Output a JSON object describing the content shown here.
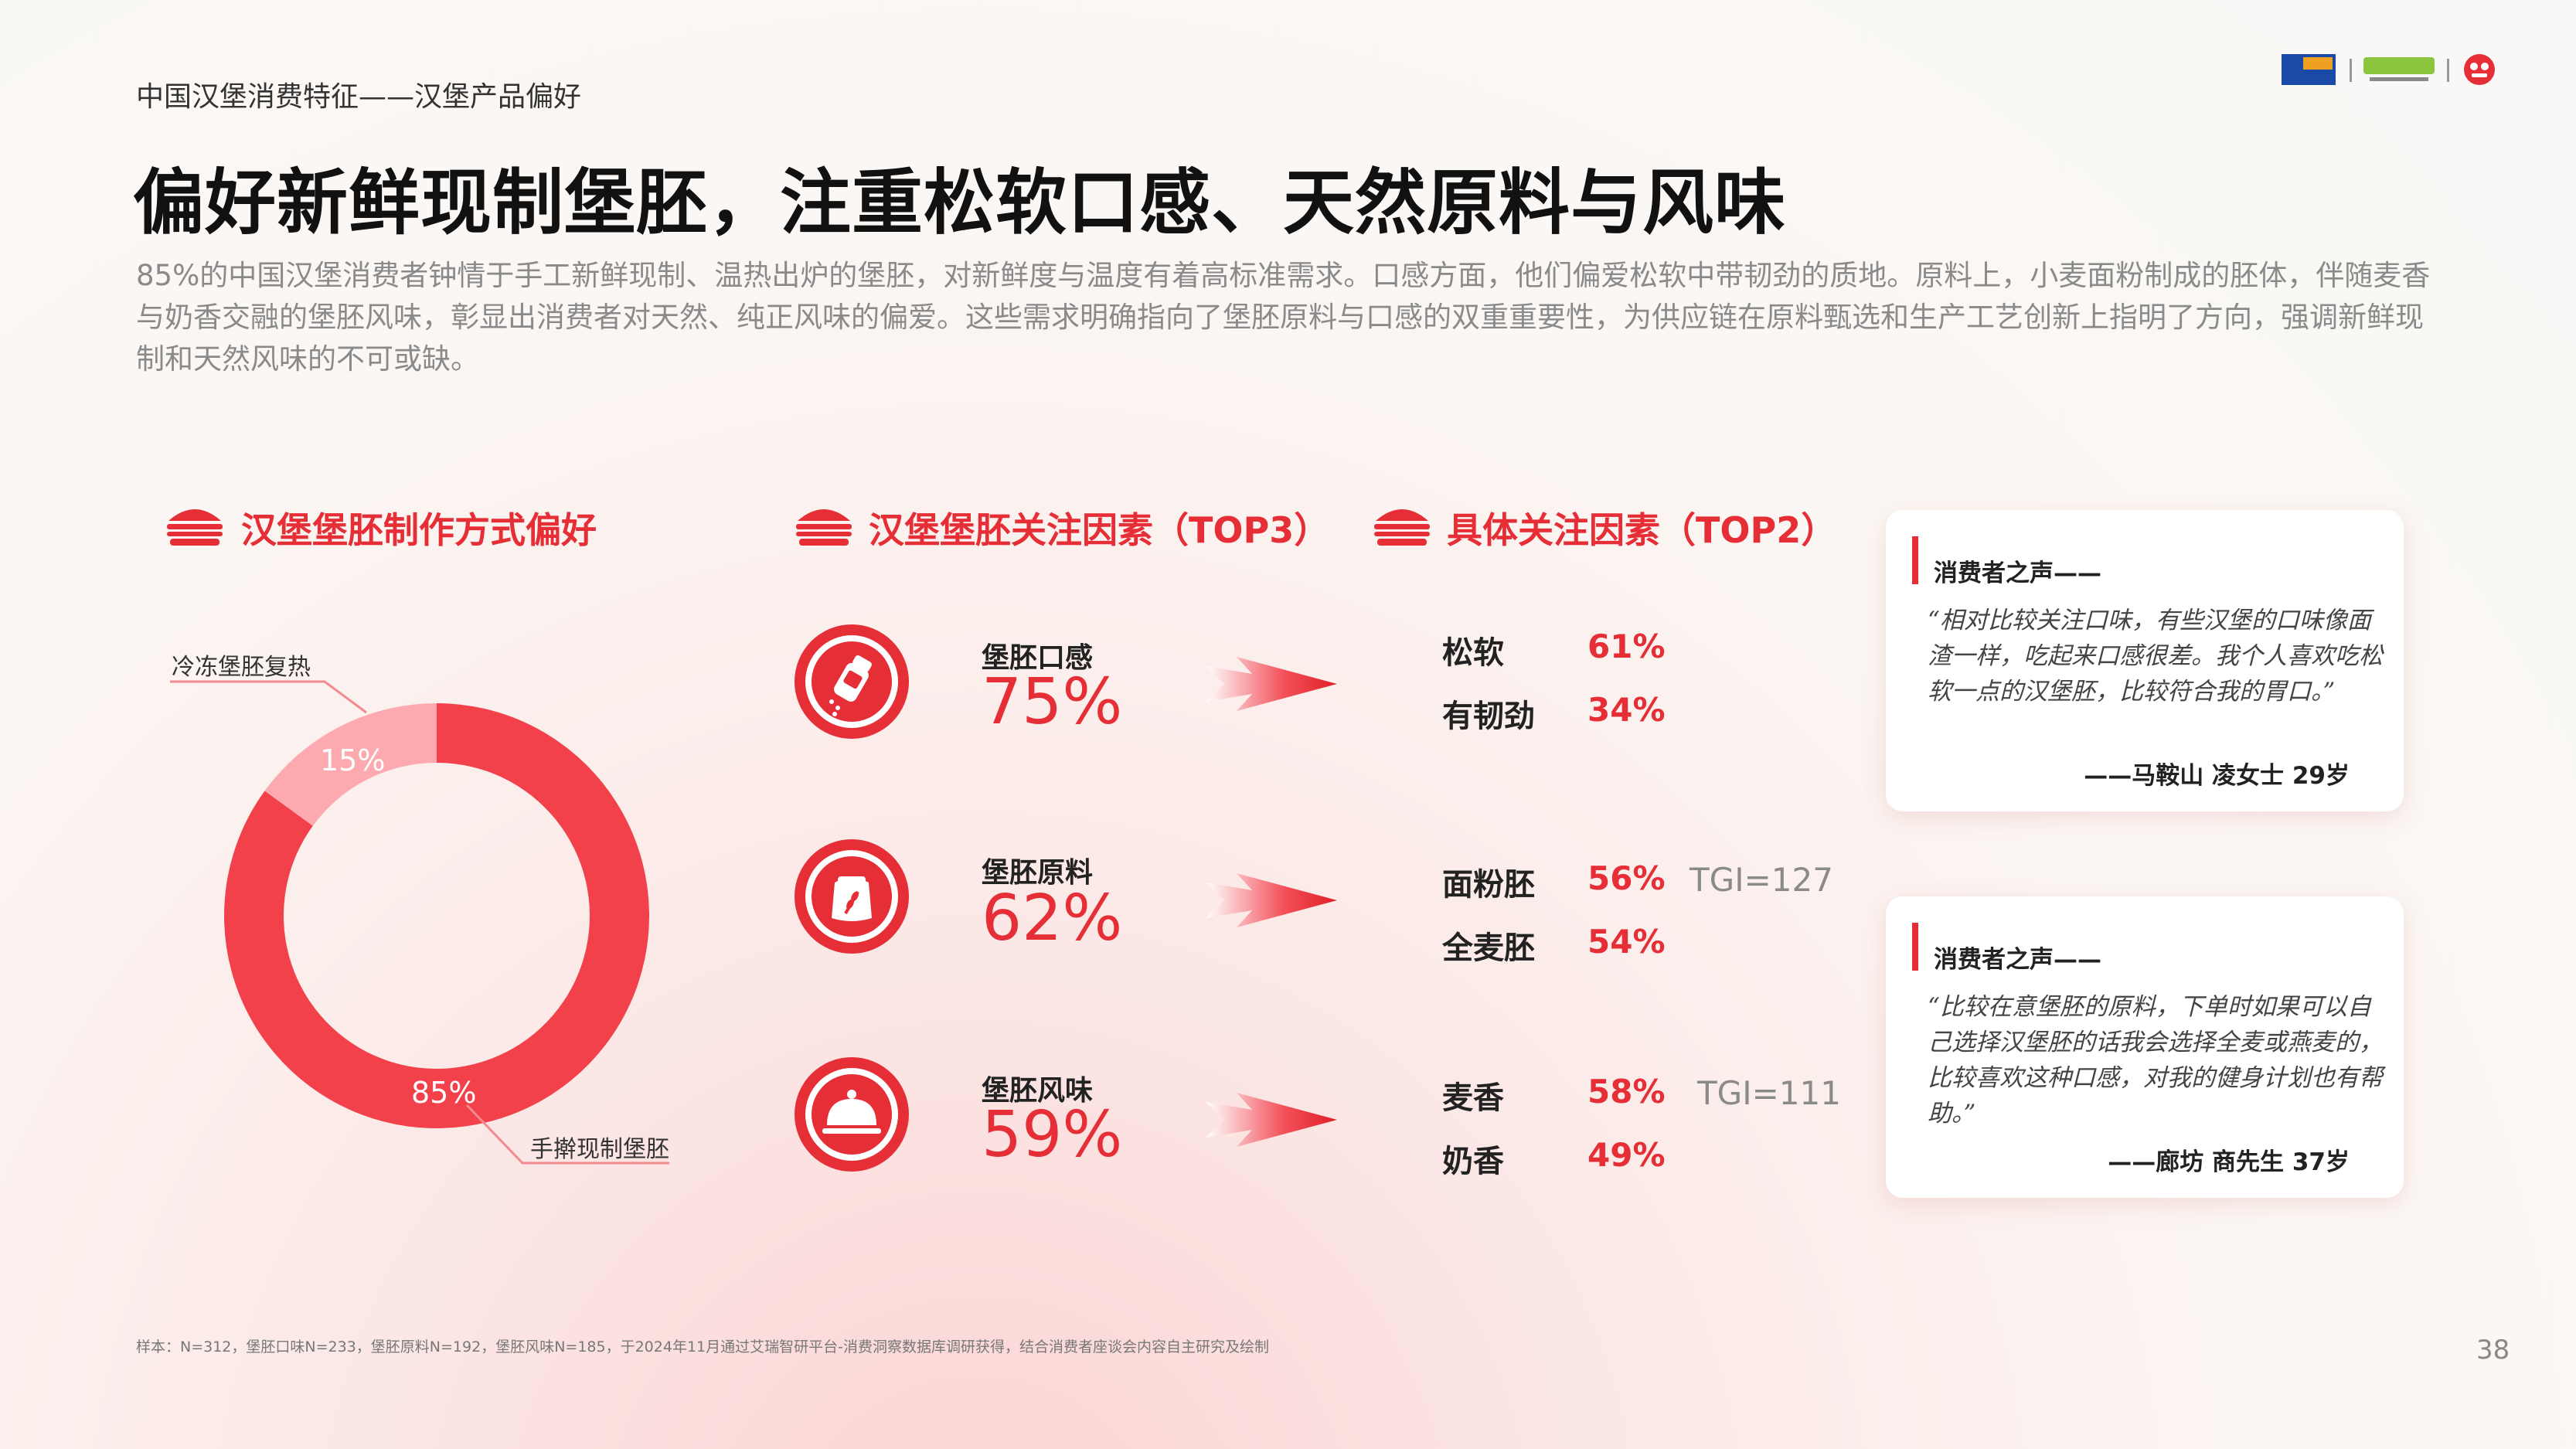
{
  "header": {
    "section": "中国汉堡消费特征——汉堡产品偏好",
    "title": "偏好新鲜现制堡胚，注重松软口感、天然原料与风味",
    "intro": "85%的中国汉堡消费者钟情于手工新鲜现制、温热出炉的堡胚，对新鲜度与温度有着高标准需求。口感方面，他们偏爱松软中带韧劲的质地。原料上，小麦面粉制成的胚体，伴随麦香与奶香交融的堡胚风味，彰显出消费者对天然、纯正风味的偏爱。这些需求明确指向了堡胚原料与口感的双重重要性，为供应链在原料甄选和生产工艺创新上指明了方向，强调新鲜现制和天然风味的不可或缺。"
  },
  "sections": {
    "method": "汉堡堡胚制作方式偏好",
    "factors": "汉堡堡胚关注因素（TOP3）",
    "details": "具体关注因素（TOP2）"
  },
  "chart_data": {
    "type": "pie",
    "donut": true,
    "title": "汉堡堡胚制作方式偏好",
    "categories": [
      "手擀现制堡胚",
      "冷冻堡胚复热"
    ],
    "values": [
      85,
      15
    ],
    "value_labels": [
      "85%",
      "15%"
    ],
    "colors": [
      "#f2414b",
      "#fcaab0"
    ],
    "legend_placement": "callout"
  },
  "factors": [
    {
      "name": "堡胚口感",
      "pct": "75%",
      "icon": "salt-shaker-icon",
      "items": [
        {
          "name": "松软",
          "pct": "61%",
          "tgi": ""
        },
        {
          "name": "有韧劲",
          "pct": "34%",
          "tgi": ""
        }
      ]
    },
    {
      "name": "堡胚原料",
      "pct": "62%",
      "icon": "flour-sack-icon",
      "items": [
        {
          "name": "面粉胚",
          "pct": "56%",
          "tgi": "TGI=127"
        },
        {
          "name": "全麦胚",
          "pct": "54%",
          "tgi": ""
        }
      ]
    },
    {
      "name": "堡胚风味",
      "pct": "59%",
      "icon": "cloche-icon",
      "items": [
        {
          "name": "麦香",
          "pct": "58%",
          "tgi": "TGI=111"
        },
        {
          "name": "奶香",
          "pct": "49%",
          "tgi": ""
        }
      ]
    }
  ],
  "voices": [
    {
      "title": "消费者之声——",
      "quote": "“相对比较关注口味，有些汉堡的口味像面渣一样，吃起来口感很差。我个人喜欢吃松软一点的汉堡胚，比较符合我的胃口。”",
      "author": "——马鞍山 凌女士 29岁"
    },
    {
      "title": "消费者之声——",
      "quote": "“比较在意堡胚的原料，下单时如果可以自己选择汉堡胚的话我会选择全麦或燕麦的，比较喜欢这种口感，对我的健身计划也有帮助。”",
      "author": "——廊坊 商先生 37岁"
    }
  ],
  "footnote": "样本：N=312，堡胚口味N=233，堡胚原料N=192，堡胚风味N=185，于2024年11月通过艾瑞智研平台-消费洞察数据库调研获得，结合消费者座谈会内容自主研究及绘制",
  "page_number": "38",
  "colors": {
    "accent": "#e62e36",
    "donut_main": "#f2414b",
    "donut_minor": "#fcaab0"
  }
}
